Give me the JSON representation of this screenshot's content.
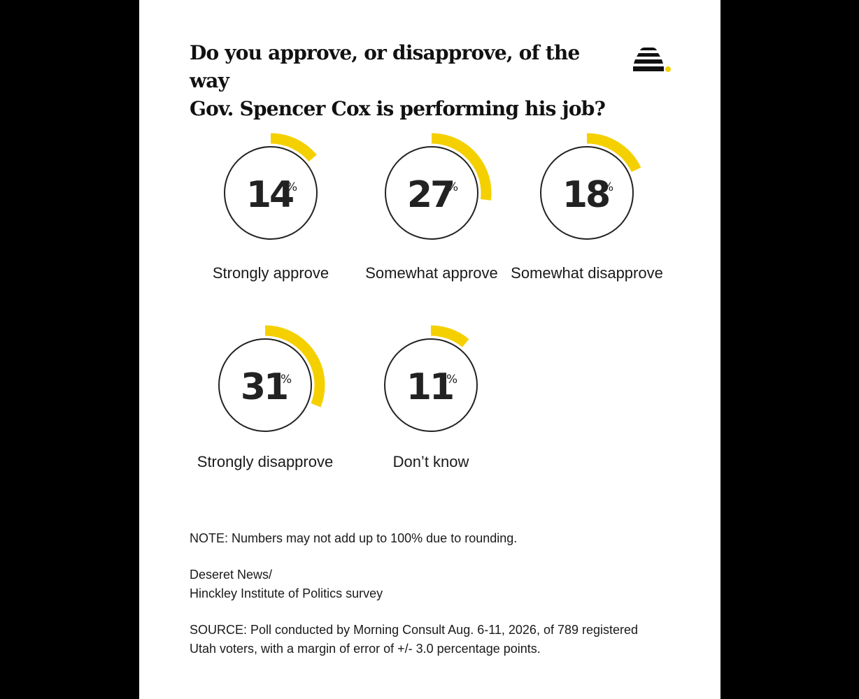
{
  "title_line1": "Do you approve, or disapprove, of the way",
  "title_line2": "Gov. Spencer Cox is performing his job?",
  "logo_icon": "beehive-icon",
  "colors": {
    "accent": "#f5d000",
    "ring": "#222222",
    "background": "#ffffff",
    "frame": "#000000"
  },
  "chart_data": {
    "type": "radial-gauge",
    "unit": "%",
    "items": [
      {
        "label": "Strongly approve",
        "value": 14
      },
      {
        "label": "Somewhat approve",
        "value": 27
      },
      {
        "label": "Somewhat disapprove",
        "value": 18
      },
      {
        "label": "Strongly disapprove",
        "value": 31
      },
      {
        "label": "Don’t know",
        "value": 11
      }
    ]
  },
  "note": "NOTE: Numbers may not add up to 100% due to rounding.",
  "credit_line1": "Deseret News/",
  "credit_line2": "Hinckley Institute of Politics survey",
  "source_line1": "SOURCE: Poll conducted by Morning Consult Aug. 6-11, 2026, of 789 registered",
  "source_line2": "Utah voters, with a margin of error of +/- 3.0 percentage points."
}
